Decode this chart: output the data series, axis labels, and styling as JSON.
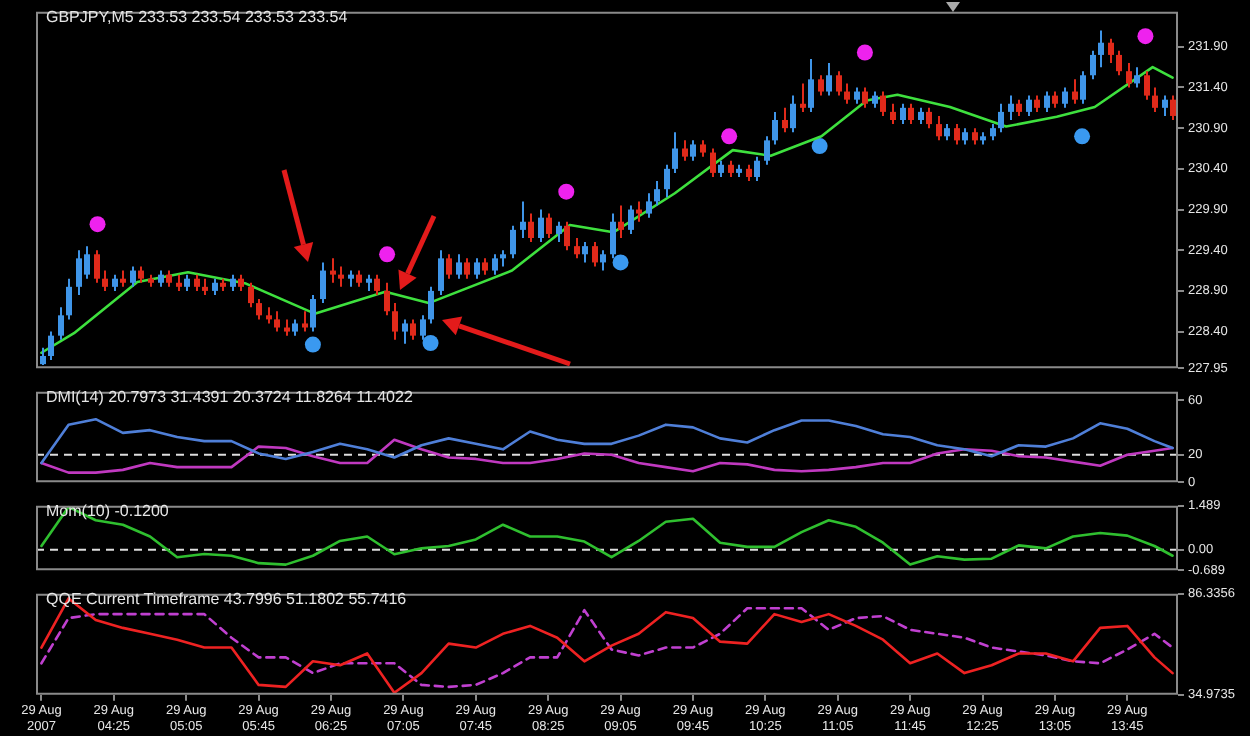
{
  "chart_data": [
    {
      "type": "candlestick",
      "title": "GBPJPY,M5  233.53 233.54 233.53 233.54",
      "grid": false,
      "tick_labels": "y",
      "xlim": [
        "2007-08-29T03:42",
        "2007-08-29T14:13"
      ],
      "ylim": [
        227.95,
        232.33
      ],
      "yticks": [
        227.95,
        {
          "value": 228.4,
          "label": "228.40"
        },
        {
          "value": 228.9,
          "label": "228.90"
        },
        {
          "value": 229.4,
          "label": "229.40"
        },
        {
          "value": 229.9,
          "label": "229.90"
        },
        {
          "value": 230.4,
          "label": "230.40"
        },
        {
          "value": 230.9,
          "label": "230.90"
        },
        {
          "value": 231.4,
          "label": "231.40"
        },
        {
          "value": 231.9,
          "label": "231.90"
        }
      ],
      "series": [
        {
          "type": "line",
          "color": "#3ee03e",
          "marker": "none",
          "x": [
            "2007-08-29T03:45",
            "2007-08-29T04:03",
            "2007-08-29T04:38",
            "2007-08-29T05:06",
            "2007-08-29T05:38",
            "2007-08-29T06:16",
            "2007-08-29T06:55",
            "2007-08-29T07:19",
            "2007-08-29T08:05",
            "2007-08-29T08:37",
            "2007-08-29T09:01",
            "2007-08-29T09:35",
            "2007-08-29T10:07",
            "2007-08-29T10:28",
            "2007-08-29T10:56",
            "2007-08-29T11:21",
            "2007-08-29T11:38",
            "2007-08-29T12:07",
            "2007-08-29T12:38",
            "2007-08-29T13:06",
            "2007-08-29T13:27",
            "2007-08-29T13:59",
            "2007-08-29T14:10"
          ],
          "values": [
            228.14,
            228.38,
            229.01,
            229.13,
            228.99,
            228.62,
            228.89,
            228.75,
            229.15,
            229.71,
            229.62,
            230.1,
            230.63,
            230.56,
            230.8,
            231.24,
            231.31,
            231.16,
            230.92,
            231.04,
            231.16,
            231.65,
            231.52
          ]
        },
        {
          "type": "scatter",
          "color": "#ee22ee",
          "marker": "circle",
          "x": [
            "2007-08-29T04:16",
            "2007-08-29T06:56",
            "2007-08-29T08:35",
            "2007-08-29T10:05",
            "2007-08-29T11:20",
            "2007-08-29T13:55"
          ],
          "values": [
            229.72,
            229.35,
            230.12,
            230.8,
            231.83,
            232.03
          ]
        },
        {
          "type": "scatter",
          "color": "#3a99f0",
          "marker": "circle",
          "x": [
            "2007-08-29T06:15",
            "2007-08-29T07:20",
            "2007-08-29T09:05",
            "2007-08-29T10:55",
            "2007-08-29T13:20"
          ],
          "values": [
            228.24,
            228.26,
            229.25,
            230.68,
            230.8
          ]
        },
        {
          "color": "#3f95e8",
          "x": [
            "2007-08-29T03:45",
            "2007-08-29T03:50",
            "2007-08-29T03:55",
            "2007-08-29T04:00",
            "2007-08-29T04:05",
            "2007-08-29T04:10",
            "2007-08-29T04:25",
            "2007-08-29T04:35",
            "2007-08-29T04:50",
            "2007-08-29T05:05",
            "2007-08-29T05:20",
            "2007-08-29T05:30",
            "2007-08-29T06:05",
            "2007-08-29T06:15",
            "2007-08-29T06:20",
            "2007-08-29T06:35",
            "2007-08-29T06:45",
            "2007-08-29T07:05",
            "2007-08-29T07:15",
            "2007-08-29T07:20",
            "2007-08-29T07:25",
            "2007-08-29T07:35",
            "2007-08-29T07:45",
            "2007-08-29T07:55",
            "2007-08-29T08:00",
            "2007-08-29T08:05",
            "2007-08-29T08:10",
            "2007-08-29T08:20",
            "2007-08-29T08:30",
            "2007-08-29T08:45",
            "2007-08-29T08:55",
            "2007-08-29T09:00",
            "2007-08-29T09:10",
            "2007-08-29T09:20",
            "2007-08-29T09:25",
            "2007-08-29T09:30",
            "2007-08-29T09:35",
            "2007-08-29T09:45",
            "2007-08-29T10:00",
            "2007-08-29T10:10",
            "2007-08-29T10:20",
            "2007-08-29T10:25",
            "2007-08-29T10:30",
            "2007-08-29T10:40",
            "2007-08-29T10:50",
            "2007-08-29T11:00",
            "2007-08-29T11:15",
            "2007-08-29T11:25",
            "2007-08-29T11:40",
            "2007-08-29T11:50",
            "2007-08-29T12:05",
            "2007-08-29T12:15",
            "2007-08-29T12:25",
            "2007-08-29T12:30",
            "2007-08-29T12:35",
            "2007-08-29T12:40",
            "2007-08-29T12:50",
            "2007-08-29T13:00",
            "2007-08-29T13:10",
            "2007-08-29T13:20",
            "2007-08-29T13:25",
            "2007-08-29T13:30",
            "2007-08-29T13:50",
            "2007-08-29T14:05"
          ],
          "ohlc": [
            [
              228.0,
              228.2,
              227.99,
              228.1
            ],
            [
              228.1,
              228.4,
              228.05,
              228.35
            ],
            [
              228.35,
              228.7,
              228.3,
              228.6
            ],
            [
              228.6,
              229.05,
              228.55,
              228.95
            ],
            [
              228.95,
              229.4,
              228.85,
              229.3
            ],
            [
              229.1,
              229.45,
              229.05,
              229.35
            ],
            [
              228.95,
              229.1,
              228.9,
              229.05
            ],
            [
              229.0,
              229.2,
              228.95,
              229.15
            ],
            [
              229.0,
              229.15,
              228.95,
              229.1
            ],
            [
              228.95,
              229.1,
              228.9,
              229.05
            ],
            [
              228.9,
              229.05,
              228.85,
              229.0
            ],
            [
              228.95,
              229.1,
              228.9,
              229.05
            ],
            [
              228.4,
              228.55,
              228.35,
              228.5
            ],
            [
              228.45,
              228.85,
              228.4,
              228.8
            ],
            [
              228.8,
              229.25,
              228.75,
              229.15
            ],
            [
              229.05,
              229.15,
              228.95,
              229.1
            ],
            [
              229.0,
              229.1,
              228.9,
              229.05
            ],
            [
              228.4,
              228.55,
              228.25,
              228.5
            ],
            [
              228.35,
              228.6,
              228.3,
              228.55
            ],
            [
              228.55,
              228.95,
              228.5,
              228.9
            ],
            [
              228.9,
              229.4,
              228.85,
              229.3
            ],
            [
              229.1,
              229.35,
              229.05,
              229.25
            ],
            [
              229.1,
              229.3,
              229.05,
              229.25
            ],
            [
              229.15,
              229.35,
              229.1,
              229.3
            ],
            [
              229.3,
              229.4,
              229.2,
              229.35
            ],
            [
              229.35,
              229.7,
              229.3,
              229.65
            ],
            [
              229.65,
              230.0,
              229.55,
              229.75
            ],
            [
              229.55,
              229.9,
              229.5,
              229.8
            ],
            [
              229.6,
              229.75,
              229.5,
              229.7
            ],
            [
              229.35,
              229.5,
              229.25,
              229.45
            ],
            [
              229.25,
              229.4,
              229.15,
              229.35
            ],
            [
              229.35,
              229.85,
              229.3,
              229.75
            ],
            [
              229.65,
              229.95,
              229.6,
              229.9
            ],
            [
              229.85,
              230.1,
              229.8,
              230.0
            ],
            [
              230.0,
              230.25,
              229.95,
              230.15
            ],
            [
              230.15,
              230.45,
              230.05,
              230.4
            ],
            [
              230.4,
              230.85,
              230.35,
              230.65
            ],
            [
              230.55,
              230.75,
              230.5,
              230.7
            ],
            [
              230.35,
              230.5,
              230.3,
              230.45
            ],
            [
              230.35,
              230.45,
              230.3,
              230.4
            ],
            [
              230.3,
              230.55,
              230.25,
              230.5
            ],
            [
              230.5,
              230.8,
              230.45,
              230.75
            ],
            [
              230.75,
              231.1,
              230.7,
              231.0
            ],
            [
              230.9,
              231.3,
              230.85,
              231.2
            ],
            [
              231.15,
              231.75,
              231.1,
              231.5
            ],
            [
              231.35,
              231.7,
              231.3,
              231.55
            ],
            [
              231.25,
              231.4,
              231.2,
              231.35
            ],
            [
              231.2,
              231.35,
              231.15,
              231.3
            ],
            [
              231.0,
              231.2,
              230.95,
              231.15
            ],
            [
              231.0,
              231.15,
              230.95,
              231.1
            ],
            [
              230.8,
              230.95,
              230.75,
              230.9
            ],
            [
              230.75,
              230.9,
              230.7,
              230.85
            ],
            [
              230.75,
              230.85,
              230.7,
              230.8
            ],
            [
              230.8,
              230.95,
              230.75,
              230.9
            ],
            [
              230.9,
              231.2,
              230.85,
              231.1
            ],
            [
              231.1,
              231.3,
              231.0,
              231.2
            ],
            [
              231.1,
              231.3,
              231.05,
              231.25
            ],
            [
              231.15,
              231.35,
              231.1,
              231.3
            ],
            [
              231.2,
              231.4,
              231.15,
              231.35
            ],
            [
              231.25,
              231.6,
              231.2,
              231.55
            ],
            [
              231.55,
              231.85,
              231.5,
              231.8
            ],
            [
              231.8,
              232.1,
              231.65,
              231.95
            ],
            [
              231.45,
              231.65,
              231.4,
              231.55
            ],
            [
              231.15,
              231.3,
              231.05,
              231.25
            ]
          ]
        },
        {
          "color": "#e02a1a",
          "x": [
            "2007-08-29T04:15",
            "2007-08-29T04:20",
            "2007-08-29T04:30",
            "2007-08-29T04:40",
            "2007-08-29T04:45",
            "2007-08-29T04:55",
            "2007-08-29T05:00",
            "2007-08-29T05:10",
            "2007-08-29T05:15",
            "2007-08-29T05:25",
            "2007-08-29T05:35",
            "2007-08-29T05:40",
            "2007-08-29T05:45",
            "2007-08-29T05:50",
            "2007-08-29T05:55",
            "2007-08-29T06:00",
            "2007-08-29T06:10",
            "2007-08-29T06:25",
            "2007-08-29T06:30",
            "2007-08-29T06:40",
            "2007-08-29T06:50",
            "2007-08-29T06:55",
            "2007-08-29T07:00",
            "2007-08-29T07:10",
            "2007-08-29T07:30",
            "2007-08-29T07:40",
            "2007-08-29T07:50",
            "2007-08-29T08:15",
            "2007-08-29T08:25",
            "2007-08-29T08:35",
            "2007-08-29T08:40",
            "2007-08-29T08:50",
            "2007-08-29T09:05",
            "2007-08-29T09:15",
            "2007-08-29T09:40",
            "2007-08-29T09:50",
            "2007-08-29T09:55",
            "2007-08-29T10:05",
            "2007-08-29T10:15",
            "2007-08-29T10:35",
            "2007-08-29T10:45",
            "2007-08-29T10:55",
            "2007-08-29T11:05",
            "2007-08-29T11:10",
            "2007-08-29T11:20",
            "2007-08-29T11:30",
            "2007-08-29T11:35",
            "2007-08-29T11:45",
            "2007-08-29T11:55",
            "2007-08-29T12:00",
            "2007-08-29T12:10",
            "2007-08-29T12:20",
            "2007-08-29T12:45",
            "2007-08-29T12:55",
            "2007-08-29T13:05",
            "2007-08-29T13:15",
            "2007-08-29T13:35",
            "2007-08-29T13:40",
            "2007-08-29T13:45",
            "2007-08-29T13:55",
            "2007-08-29T14:00",
            "2007-08-29T14:10"
          ],
          "ohlc": [
            [
              229.35,
              229.4,
              229.0,
              229.05
            ],
            [
              229.05,
              229.15,
              228.9,
              228.95
            ],
            [
              229.05,
              229.15,
              228.95,
              229.0
            ],
            [
              229.15,
              229.2,
              229.0,
              229.05
            ],
            [
              229.05,
              229.1,
              228.95,
              229.0
            ],
            [
              229.1,
              229.15,
              228.95,
              229.0
            ],
            [
              229.0,
              229.1,
              228.9,
              228.95
            ],
            [
              229.05,
              229.1,
              228.9,
              228.95
            ],
            [
              228.95,
              229.05,
              228.85,
              228.9
            ],
            [
              229.0,
              229.05,
              228.9,
              228.95
            ],
            [
              229.05,
              229.1,
              228.9,
              228.95
            ],
            [
              228.95,
              229.0,
              228.7,
              228.75
            ],
            [
              228.75,
              228.8,
              228.55,
              228.6
            ],
            [
              228.6,
              228.7,
              228.5,
              228.55
            ],
            [
              228.55,
              228.65,
              228.4,
              228.45
            ],
            [
              228.45,
              228.55,
              228.35,
              228.4
            ],
            [
              228.5,
              228.65,
              228.4,
              228.45
            ],
            [
              229.15,
              229.3,
              229.0,
              229.1
            ],
            [
              229.1,
              229.2,
              228.95,
              229.05
            ],
            [
              229.1,
              229.15,
              228.95,
              229.0
            ],
            [
              229.05,
              229.1,
              228.85,
              228.9
            ],
            [
              228.9,
              229.0,
              228.6,
              228.65
            ],
            [
              228.65,
              228.75,
              228.3,
              228.4
            ],
            [
              228.5,
              228.55,
              228.3,
              228.35
            ],
            [
              229.3,
              229.35,
              229.05,
              229.1
            ],
            [
              229.25,
              229.3,
              229.05,
              229.1
            ],
            [
              229.25,
              229.3,
              229.1,
              229.15
            ],
            [
              229.75,
              229.85,
              229.5,
              229.55
            ],
            [
              229.8,
              229.85,
              229.55,
              229.6
            ],
            [
              229.7,
              229.75,
              229.4,
              229.45
            ],
            [
              229.45,
              229.55,
              229.3,
              229.35
            ],
            [
              229.45,
              229.5,
              229.2,
              229.25
            ],
            [
              229.75,
              229.95,
              229.55,
              229.65
            ],
            [
              229.9,
              230.0,
              229.75,
              229.85
            ],
            [
              230.65,
              230.75,
              230.5,
              230.55
            ],
            [
              230.7,
              230.75,
              230.55,
              230.6
            ],
            [
              230.6,
              230.65,
              230.3,
              230.35
            ],
            [
              230.45,
              230.5,
              230.3,
              230.35
            ],
            [
              230.4,
              230.45,
              230.25,
              230.3
            ],
            [
              231.0,
              231.15,
              230.85,
              230.9
            ],
            [
              231.2,
              231.45,
              231.1,
              231.15
            ],
            [
              231.5,
              231.55,
              231.3,
              231.35
            ],
            [
              231.55,
              231.6,
              231.3,
              231.35
            ],
            [
              231.35,
              231.45,
              231.2,
              231.25
            ],
            [
              231.35,
              231.4,
              231.15,
              231.2
            ],
            [
              231.3,
              231.35,
              231.05,
              231.1
            ],
            [
              231.1,
              231.2,
              230.95,
              231.0
            ],
            [
              231.15,
              231.2,
              230.95,
              231.0
            ],
            [
              231.1,
              231.15,
              230.9,
              230.95
            ],
            [
              230.95,
              231.05,
              230.75,
              230.8
            ],
            [
              230.9,
              230.95,
              230.7,
              230.75
            ],
            [
              230.85,
              230.9,
              230.7,
              230.75
            ],
            [
              231.2,
              231.25,
              231.05,
              231.1
            ],
            [
              231.25,
              231.3,
              231.1,
              231.15
            ],
            [
              231.3,
              231.35,
              231.15,
              231.2
            ],
            [
              231.35,
              231.5,
              231.2,
              231.25
            ],
            [
              231.95,
              232.0,
              231.7,
              231.8
            ],
            [
              231.8,
              231.85,
              231.55,
              231.6
            ],
            [
              231.6,
              231.7,
              231.4,
              231.45
            ],
            [
              231.55,
              231.6,
              231.25,
              231.3
            ],
            [
              231.3,
              231.4,
              231.1,
              231.15
            ],
            [
              231.25,
              231.3,
              231.0,
              231.05
            ]
          ]
        }
      ]
    },
    {
      "type": "line",
      "title": "DMI(14) 20.7973 31.4391 20.3724 11.8264 11.4022",
      "grid": false,
      "tick_labels": "y",
      "xlim": [
        "2007-08-29T03:42",
        "2007-08-29T14:13"
      ],
      "ylim": [
        0,
        66
      ],
      "yticks": [
        0,
        20,
        60
      ],
      "ref_lines": [
        {
          "axis": "y",
          "value": 20,
          "color": "#dddddd",
          "line_style": "dashed"
        }
      ],
      "x": [
        "2007-08-29T03:45",
        "2007-08-29T04:00",
        "2007-08-29T04:15",
        "2007-08-29T04:30",
        "2007-08-29T04:45",
        "2007-08-29T05:00",
        "2007-08-29T05:15",
        "2007-08-29T05:30",
        "2007-08-29T05:45",
        "2007-08-29T06:00",
        "2007-08-29T06:15",
        "2007-08-29T06:30",
        "2007-08-29T06:45",
        "2007-08-29T07:00",
        "2007-08-29T07:15",
        "2007-08-29T07:30",
        "2007-08-29T07:45",
        "2007-08-29T08:00",
        "2007-08-29T08:15",
        "2007-08-29T08:30",
        "2007-08-29T08:45",
        "2007-08-29T09:00",
        "2007-08-29T09:15",
        "2007-08-29T09:30",
        "2007-08-29T09:45",
        "2007-08-29T10:00",
        "2007-08-29T10:15",
        "2007-08-29T10:30",
        "2007-08-29T10:45",
        "2007-08-29T11:00",
        "2007-08-29T11:15",
        "2007-08-29T11:30",
        "2007-08-29T11:45",
        "2007-08-29T12:00",
        "2007-08-29T12:15",
        "2007-08-29T12:30",
        "2007-08-29T12:45",
        "2007-08-29T13:00",
        "2007-08-29T13:15",
        "2007-08-29T13:30",
        "2007-08-29T13:45",
        "2007-08-29T14:00",
        "2007-08-29T14:10"
      ],
      "series": [
        {
          "color": "#4f7fd8",
          "marker": "none",
          "values": [
            14,
            42,
            46,
            36,
            38,
            33,
            30,
            30,
            21,
            17,
            22,
            28,
            24,
            18,
            27,
            32,
            28,
            24,
            37,
            31,
            28,
            28,
            34,
            42,
            40,
            32,
            29,
            38,
            45,
            45,
            41,
            35,
            33,
            27,
            24,
            19,
            27,
            26,
            32,
            43,
            39,
            30,
            25
          ]
        },
        {
          "color": "#c039c0",
          "marker": "none",
          "values": [
            14,
            7,
            7,
            9,
            14,
            11,
            11,
            11,
            26,
            25,
            19,
            14,
            14,
            31,
            24,
            18,
            17,
            14,
            14,
            17,
            21,
            20,
            14,
            11,
            8,
            14,
            13,
            9,
            8,
            9,
            11,
            14,
            14,
            21,
            24,
            23,
            19,
            18,
            15,
            12,
            20,
            23,
            25
          ]
        }
      ]
    },
    {
      "type": "line",
      "title": "Mom(10) -0.1200",
      "grid": false,
      "tick_labels": "y",
      "xlim": [
        "2007-08-29T03:42",
        "2007-08-29T14:13"
      ],
      "ylim": [
        -0.689,
        1.489
      ],
      "yticks": [
        -0.689,
        {
          "value": 0,
          "label": "0.00"
        },
        1.489
      ],
      "ref_lines": [
        {
          "axis": "y",
          "value": 0,
          "color": "#dddddd",
          "line_style": "dashed"
        }
      ],
      "x": [
        "2007-08-29T03:45",
        "2007-08-29T04:00",
        "2007-08-29T04:15",
        "2007-08-29T04:30",
        "2007-08-29T04:45",
        "2007-08-29T05:00",
        "2007-08-29T05:15",
        "2007-08-29T05:30",
        "2007-08-29T05:45",
        "2007-08-29T06:00",
        "2007-08-29T06:15",
        "2007-08-29T06:30",
        "2007-08-29T06:45",
        "2007-08-29T07:00",
        "2007-08-29T07:15",
        "2007-08-29T07:30",
        "2007-08-29T07:45",
        "2007-08-29T08:00",
        "2007-08-29T08:15",
        "2007-08-29T08:30",
        "2007-08-29T08:45",
        "2007-08-29T09:00",
        "2007-08-29T09:15",
        "2007-08-29T09:30",
        "2007-08-29T09:45",
        "2007-08-29T10:00",
        "2007-08-29T10:15",
        "2007-08-29T10:30",
        "2007-08-29T10:45",
        "2007-08-29T11:00",
        "2007-08-29T11:15",
        "2007-08-29T11:30",
        "2007-08-29T11:45",
        "2007-08-29T12:00",
        "2007-08-29T12:15",
        "2007-08-29T12:30",
        "2007-08-29T12:45",
        "2007-08-29T13:00",
        "2007-08-29T13:15",
        "2007-08-29T13:30",
        "2007-08-29T13:45",
        "2007-08-29T14:00",
        "2007-08-29T14:10"
      ],
      "series": [
        {
          "color": "#2fbf2f",
          "marker": "none",
          "values": [
            0.13,
            1.45,
            1.0,
            0.85,
            0.45,
            -0.25,
            -0.14,
            -0.2,
            -0.45,
            -0.5,
            -0.2,
            0.3,
            0.45,
            -0.15,
            0.05,
            0.13,
            0.35,
            0.85,
            0.45,
            0.45,
            0.28,
            -0.25,
            0.3,
            0.95,
            1.05,
            0.24,
            0.1,
            0.1,
            0.6,
            1.0,
            0.78,
            0.24,
            -0.5,
            -0.22,
            -0.33,
            -0.3,
            0.15,
            0.05,
            0.45,
            0.57,
            0.48,
            0.13,
            -0.2
          ]
        }
      ]
    },
    {
      "type": "line",
      "title": "QQE Current Timeframe 43.7996 51.1802 55.7416",
      "grid": false,
      "xlim": [
        "2007-08-29T03:42",
        "2007-08-29T14:13"
      ],
      "xticks": [
        {
          "value": "2007-08-29T03:45",
          "label": "29 Aug 2007"
        },
        {
          "value": "2007-08-29T04:25",
          "label": "29 Aug 04:25"
        },
        {
          "value": "2007-08-29T05:05",
          "label": "29 Aug 05:05"
        },
        {
          "value": "2007-08-29T05:45",
          "label": "29 Aug 05:45"
        },
        {
          "value": "2007-08-29T06:25",
          "label": "29 Aug 06:25"
        },
        {
          "value": "2007-08-29T07:05",
          "label": "29 Aug 07:05"
        },
        {
          "value": "2007-08-29T07:45",
          "label": "29 Aug 07:45"
        },
        {
          "value": "2007-08-29T08:25",
          "label": "29 Aug 08:25"
        },
        {
          "value": "2007-08-29T09:05",
          "label": "29 Aug 09:05"
        },
        {
          "value": "2007-08-29T09:45",
          "label": "29 Aug 09:45"
        },
        {
          "value": "2007-08-29T10:25",
          "label": "29 Aug 10:25"
        },
        {
          "value": "2007-08-29T11:05",
          "label": "29 Aug 11:05"
        },
        {
          "value": "2007-08-29T11:45",
          "label": "29 Aug 11:45"
        },
        {
          "value": "2007-08-29T12:25",
          "label": "29 Aug 12:25"
        },
        {
          "value": "2007-08-29T13:05",
          "label": "29 Aug 13:05"
        },
        {
          "value": "2007-08-29T13:45",
          "label": "29 Aug 13:45"
        }
      ],
      "ylim": [
        34.9735,
        86.3356
      ],
      "yticks": [
        34.9735,
        86.3356
      ],
      "x": [
        "2007-08-29T03:45",
        "2007-08-29T04:00",
        "2007-08-29T04:15",
        "2007-08-29T04:30",
        "2007-08-29T04:45",
        "2007-08-29T05:00",
        "2007-08-29T05:15",
        "2007-08-29T05:30",
        "2007-08-29T05:45",
        "2007-08-29T06:00",
        "2007-08-29T06:15",
        "2007-08-29T06:30",
        "2007-08-29T06:45",
        "2007-08-29T07:00",
        "2007-08-29T07:15",
        "2007-08-29T07:30",
        "2007-08-29T07:45",
        "2007-08-29T08:00",
        "2007-08-29T08:15",
        "2007-08-29T08:30",
        "2007-08-29T08:45",
        "2007-08-29T09:00",
        "2007-08-29T09:15",
        "2007-08-29T09:30",
        "2007-08-29T09:45",
        "2007-08-29T10:00",
        "2007-08-29T10:15",
        "2007-08-29T10:30",
        "2007-08-29T10:45",
        "2007-08-29T11:00",
        "2007-08-29T11:15",
        "2007-08-29T11:30",
        "2007-08-29T11:45",
        "2007-08-29T12:00",
        "2007-08-29T12:15",
        "2007-08-29T12:30",
        "2007-08-29T12:45",
        "2007-08-29T13:00",
        "2007-08-29T13:15",
        "2007-08-29T13:30",
        "2007-08-29T13:45",
        "2007-08-29T14:00",
        "2007-08-29T14:10"
      ],
      "series": [
        {
          "color": "#ee2222",
          "marker": "none",
          "line_style": "solid",
          "values": [
            59,
            84,
            73,
            69,
            66,
            63,
            59,
            59,
            40,
            39,
            52,
            50,
            56,
            36,
            46,
            61,
            59,
            66,
            70,
            64,
            52,
            60,
            66,
            77,
            74,
            62,
            61,
            76,
            72,
            76,
            70,
            63,
            51,
            56,
            46,
            50,
            56,
            56,
            52,
            69,
            70,
            54,
            46
          ]
        },
        {
          "color": "#c040d0",
          "marker": "none",
          "line_style": "dashed",
          "values": [
            51,
            74,
            76,
            76,
            76,
            76,
            76,
            64,
            54,
            54,
            46,
            51,
            51,
            51,
            40,
            39,
            40,
            46,
            54,
            54,
            78,
            58,
            55,
            59,
            59,
            66,
            79,
            79,
            79,
            68,
            74,
            75,
            68,
            66,
            64,
            59,
            57,
            55,
            52,
            51,
            58,
            66,
            59
          ]
        }
      ]
    }
  ]
}
